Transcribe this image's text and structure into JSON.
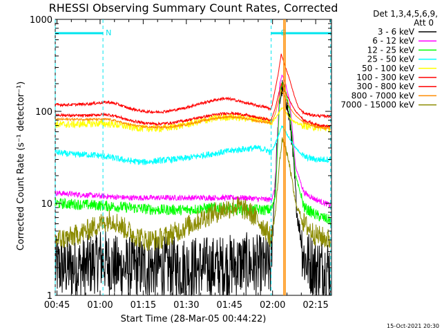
{
  "chart_data": {
    "type": "line",
    "title": "RHESSI Observing Summary Count Rates, Corrected",
    "xlabel": "Start Time (28-Mar-05 00:44:22)",
    "ylabel": "Corrected Count Rate (s⁻¹ detector⁻¹)",
    "yscale": "log",
    "ylim": [
      1,
      1000
    ],
    "xlim_minutes": [
      44.4,
      140.5
    ],
    "x_ticks": [
      {
        "label": "00:45",
        "minute": 45
      },
      {
        "label": "01:00",
        "minute": 60
      },
      {
        "label": "01:15",
        "minute": 75
      },
      {
        "label": "01:30",
        "minute": 90
      },
      {
        "label": "01:45",
        "minute": 105
      },
      {
        "label": "02:00",
        "minute": 120
      },
      {
        "label": "02:15",
        "minute": 135
      }
    ],
    "y_ticks": [
      {
        "label": "1",
        "value": 1
      },
      {
        "label": "10",
        "value": 10
      },
      {
        "label": "100",
        "value": 100
      },
      {
        "label": "1000",
        "value": 1000
      }
    ],
    "legend_header": [
      "Det 1,3,4,5,6,9,",
      "Att 0"
    ],
    "legend_position": "right",
    "flags": [
      {
        "label": "N",
        "start": 44.4,
        "end": 61.0,
        "color": "#00e5ee"
      },
      {
        "label": "S",
        "start": 119.5,
        "end": 140.2,
        "color": "#00e5ee"
      }
    ],
    "vertical_lines": [
      {
        "minute": 123.9,
        "color": "#ff8c00"
      },
      {
        "minute": 124.4,
        "color": "#ff8c00"
      }
    ],
    "series": [
      {
        "name": "3 - 6 keV",
        "color": "#000000",
        "points": [
          [
            44.4,
            2.0
          ],
          [
            55,
            2.0
          ],
          [
            60,
            2.5
          ],
          [
            66,
            2.0
          ],
          [
            80,
            2.0
          ],
          [
            90,
            2.0
          ],
          [
            100,
            2.0
          ],
          [
            110,
            2.2
          ],
          [
            118,
            2.0
          ],
          [
            119.5,
            2.0
          ],
          [
            120.5,
            10
          ],
          [
            121.5,
            40
          ],
          [
            122.5,
            130
          ],
          [
            123.3,
            180
          ],
          [
            124.5,
            150
          ],
          [
            126.5,
            60
          ],
          [
            128.5,
            8
          ],
          [
            131,
            2.5
          ],
          [
            135,
            2.0
          ],
          [
            140.2,
            2.0
          ]
        ]
      },
      {
        "name": "6 - 12 keV",
        "color": "#ff00ff",
        "points": [
          [
            44.4,
            13
          ],
          [
            60,
            12
          ],
          [
            70,
            11.5
          ],
          [
            80,
            11.5
          ],
          [
            90,
            11.5
          ],
          [
            100,
            11.5
          ],
          [
            110,
            11.5
          ],
          [
            118,
            11
          ],
          [
            119.5,
            11
          ],
          [
            121,
            15
          ],
          [
            122.5,
            200
          ],
          [
            123.3,
            250
          ],
          [
            124.5,
            200
          ],
          [
            126,
            130
          ],
          [
            128,
            25
          ],
          [
            131,
            13
          ],
          [
            135,
            11
          ],
          [
            140.2,
            9.5
          ]
        ]
      },
      {
        "name": "12 - 25 keV",
        "color": "#00ff00",
        "points": [
          [
            44.4,
            10
          ],
          [
            60,
            9.5
          ],
          [
            70,
            9
          ],
          [
            80,
            8.5
          ],
          [
            90,
            8.5
          ],
          [
            100,
            9
          ],
          [
            110,
            8.5
          ],
          [
            118,
            8.5
          ],
          [
            119.5,
            8.5
          ],
          [
            121,
            12
          ],
          [
            122.5,
            150
          ],
          [
            123.3,
            200
          ],
          [
            124.5,
            170
          ],
          [
            126,
            100
          ],
          [
            128,
            20
          ],
          [
            131,
            9
          ],
          [
            135,
            7.5
          ],
          [
            140.2,
            6.5
          ]
        ]
      },
      {
        "name": "25 - 50 keV",
        "color": "#00ffff",
        "points": [
          [
            44.4,
            36
          ],
          [
            50,
            34
          ],
          [
            55,
            34
          ],
          [
            60,
            33
          ],
          [
            65,
            31
          ],
          [
            70,
            29
          ],
          [
            75,
            28
          ],
          [
            80,
            29
          ],
          [
            85,
            30
          ],
          [
            90,
            31
          ],
          [
            95,
            33
          ],
          [
            100,
            35
          ],
          [
            105,
            37
          ],
          [
            110,
            39
          ],
          [
            115,
            40
          ],
          [
            118,
            38
          ],
          [
            119.5,
            35
          ],
          [
            121,
            45
          ],
          [
            122.5,
            60
          ],
          [
            123.3,
            70
          ],
          [
            124.5,
            60
          ],
          [
            126,
            50
          ],
          [
            128,
            40
          ],
          [
            131,
            32
          ],
          [
            135,
            30
          ],
          [
            140.2,
            30
          ]
        ]
      },
      {
        "name": "50 - 100 keV",
        "color": "#ffff00",
        "points": [
          [
            44.4,
            72
          ],
          [
            50,
            72
          ],
          [
            55,
            73
          ],
          [
            60,
            74
          ],
          [
            65,
            72
          ],
          [
            70,
            68
          ],
          [
            75,
            65
          ],
          [
            80,
            65
          ],
          [
            85,
            67
          ],
          [
            90,
            72
          ],
          [
            95,
            78
          ],
          [
            100,
            84
          ],
          [
            105,
            87
          ],
          [
            110,
            85
          ],
          [
            115,
            82
          ],
          [
            118,
            80
          ],
          [
            119.5,
            75
          ],
          [
            121,
            85
          ],
          [
            122.5,
            100
          ],
          [
            123.3,
            110
          ],
          [
            124.5,
            100
          ],
          [
            126,
            85
          ],
          [
            128,
            75
          ],
          [
            131,
            70
          ],
          [
            135,
            67
          ],
          [
            140.2,
            65
          ]
        ]
      },
      {
        "name": "100 - 300 keV",
        "color": "#ff0000",
        "points": [
          [
            44.4,
            118
          ],
          [
            50,
            118
          ],
          [
            55,
            120
          ],
          [
            60,
            124
          ],
          [
            63,
            126
          ],
          [
            66,
            120
          ],
          [
            70,
            108
          ],
          [
            75,
            100
          ],
          [
            80,
            98
          ],
          [
            85,
            102
          ],
          [
            90,
            110
          ],
          [
            95,
            122
          ],
          [
            100,
            133
          ],
          [
            103,
            138
          ],
          [
            106,
            135
          ],
          [
            110,
            125
          ],
          [
            115,
            115
          ],
          [
            118,
            110
          ],
          [
            119.5,
            105
          ],
          [
            121,
            180
          ],
          [
            122,
            260
          ],
          [
            123,
            420
          ],
          [
            124.5,
            300
          ],
          [
            126,
            220
          ],
          [
            127.5,
            150
          ],
          [
            129,
            110
          ],
          [
            131,
            95
          ],
          [
            135,
            90
          ],
          [
            140.2,
            88
          ]
        ]
      },
      {
        "name": "300 - 800 keV",
        "color": "#ff0000",
        "points": [
          [
            44.4,
            92
          ],
          [
            50,
            90
          ],
          [
            55,
            90
          ],
          [
            60,
            92
          ],
          [
            63,
            92
          ],
          [
            66,
            88
          ],
          [
            70,
            80
          ],
          [
            75,
            75
          ],
          [
            80,
            73
          ],
          [
            85,
            75
          ],
          [
            90,
            80
          ],
          [
            95,
            86
          ],
          [
            100,
            92
          ],
          [
            105,
            96
          ],
          [
            110,
            92
          ],
          [
            115,
            85
          ],
          [
            118,
            82
          ],
          [
            119.5,
            80
          ],
          [
            121,
            110
          ],
          [
            122,
            150
          ],
          [
            123,
            200
          ],
          [
            124.5,
            160
          ],
          [
            126,
            130
          ],
          [
            128,
            100
          ],
          [
            131,
            80
          ],
          [
            135,
            72
          ],
          [
            140.2,
            68
          ]
        ]
      },
      {
        "name": "800 - 7000 keV",
        "color": "#ff8c00",
        "points": [
          [
            44.4,
            82
          ],
          [
            50,
            82
          ],
          [
            55,
            82
          ],
          [
            60,
            82
          ],
          [
            63,
            82
          ],
          [
            66,
            78
          ],
          [
            70,
            72
          ],
          [
            75,
            68
          ],
          [
            80,
            67
          ],
          [
            85,
            68
          ],
          [
            90,
            72
          ],
          [
            95,
            78
          ],
          [
            100,
            84
          ],
          [
            105,
            88
          ],
          [
            110,
            84
          ],
          [
            115,
            78
          ],
          [
            118,
            76
          ],
          [
            119.5,
            74
          ],
          [
            121,
            95
          ],
          [
            122,
            130
          ],
          [
            123,
            170
          ],
          [
            124.5,
            140
          ],
          [
            126,
            110
          ],
          [
            128,
            90
          ],
          [
            131,
            75
          ],
          [
            135,
            68
          ],
          [
            140.2,
            64
          ]
        ]
      },
      {
        "name": "7000 - 15000 keV",
        "color": "#8b8b00",
        "points": [
          [
            44.4,
            4.0
          ],
          [
            50,
            4.3
          ],
          [
            55,
            5.0
          ],
          [
            60,
            6.0
          ],
          [
            64,
            6.8
          ],
          [
            68,
            5.5
          ],
          [
            72,
            4.5
          ],
          [
            76,
            4.0
          ],
          [
            80,
            4.0
          ],
          [
            86,
            4.8
          ],
          [
            92,
            6.0
          ],
          [
            98,
            7.5
          ],
          [
            104,
            8.8
          ],
          [
            108,
            9.3
          ],
          [
            112,
            8.0
          ],
          [
            115,
            6.5
          ],
          [
            118,
            5.0
          ],
          [
            119.5,
            4.2
          ],
          [
            121,
            8
          ],
          [
            122.5,
            30
          ],
          [
            123.3,
            50
          ],
          [
            124.5,
            40
          ],
          [
            126,
            25
          ],
          [
            128,
            10
          ],
          [
            131,
            6
          ],
          [
            135,
            4.5
          ],
          [
            140.2,
            4.0
          ]
        ]
      }
    ]
  },
  "footer_timestamp": "15-Oct-2021 20:30"
}
